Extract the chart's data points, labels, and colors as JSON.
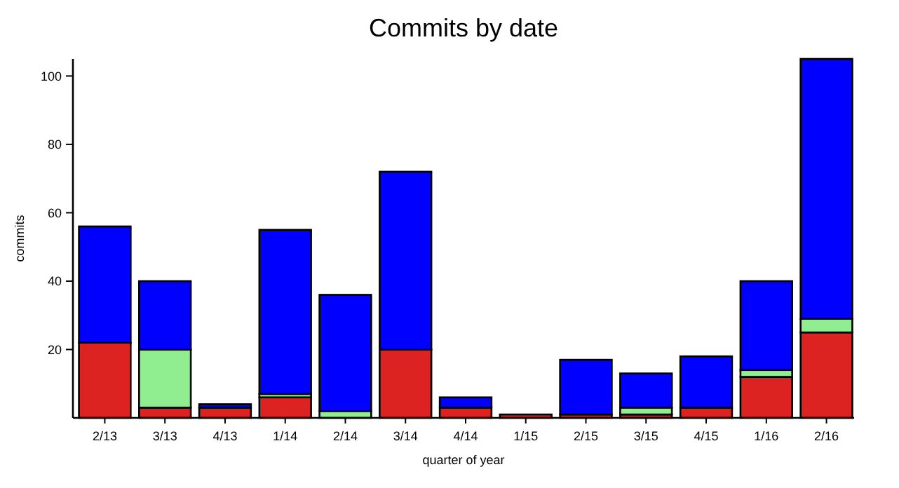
{
  "chart_data": {
    "type": "bar",
    "title": "Commits by date",
    "xlabel": "quarter of year",
    "ylabel": "commits",
    "stacked": true,
    "grid": false,
    "categories": [
      "2/13",
      "3/13",
      "4/13",
      "1/14",
      "2/14",
      "3/14",
      "4/14",
      "1/15",
      "2/15",
      "3/15",
      "4/15",
      "1/16",
      "2/16"
    ],
    "series": [
      {
        "color": "#dd2222",
        "values": [
          22,
          3,
          3,
          6,
          0,
          20,
          3,
          1,
          1,
          1,
          3,
          12,
          25
        ]
      },
      {
        "color": "#90ee90",
        "values": [
          0,
          17,
          0,
          1,
          2,
          0,
          0,
          0,
          0,
          2,
          0,
          2,
          4
        ]
      },
      {
        "color": "#0000ff",
        "values": [
          34,
          20,
          1,
          48,
          34,
          52,
          3,
          0,
          16,
          10,
          15,
          26,
          76
        ]
      }
    ],
    "ylim": [
      0,
      105
    ],
    "yticks": [
      20,
      40,
      60,
      80,
      100
    ]
  }
}
